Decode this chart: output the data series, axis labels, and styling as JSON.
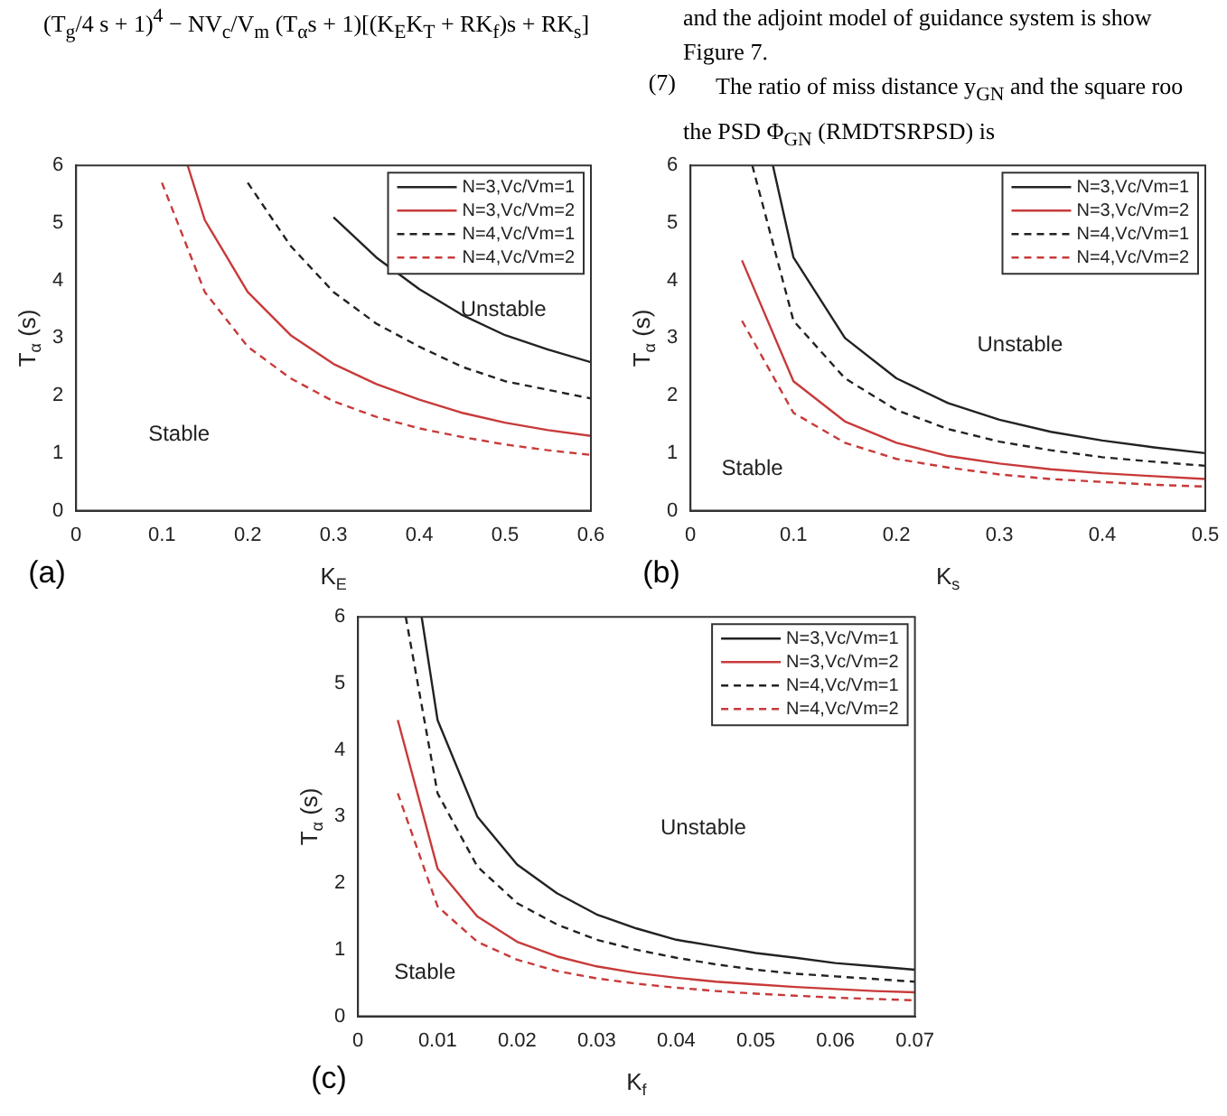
{
  "chart_data": [
    {
      "type": "other",
      "annotations": [
        "(T$_{g}$/4 s + 1)$^{4}$ − NV$_{c}$/V$_{m}$ (T$_{α}$s + 1)[(K$_{E}$K$_{T}$ + RK$_{f}$)s + RK$_{s}$]",
        "(7)",
        "and the adjoint model of guidance system is show",
        "Figure 7.",
        "The ratio of miss distance y$_{GN}$ and the square roo",
        "the PSD Φ$_{GN}$ (RMDTSRPSD) is"
      ]
    },
    {
      "type": "line",
      "xlabel": "K$_{E}$",
      "ylabel": "T$_{α}$ (s)",
      "xlim": [
        0,
        0.6
      ],
      "xticks": [
        0,
        0.1,
        0.2,
        0.3,
        0.4,
        0.5,
        0.6
      ],
      "ylim": [
        0,
        6
      ],
      "yticks": [
        0,
        1,
        2,
        3,
        4,
        5,
        6
      ],
      "legend": "top right",
      "grid": false,
      "annotations": [
        "Unstable",
        "Stable",
        "(a)"
      ],
      "series": [
        {
          "name": "N=3,Vc/Vm=1",
          "color": "#222222",
          "line_style": "solid",
          "x": [
            0.3,
            0.35,
            0.4,
            0.45,
            0.5,
            0.55,
            0.6
          ],
          "values": [
            5.1,
            4.4,
            3.85,
            3.4,
            3.05,
            2.8,
            2.58
          ]
        },
        {
          "name": "N=3,Vc/Vm=2",
          "color": "#c83a3a",
          "line_style": "solid",
          "x": [
            0.13,
            0.15,
            0.2,
            0.25,
            0.3,
            0.35,
            0.4,
            0.45,
            0.5,
            0.55,
            0.6
          ],
          "values": [
            6,
            5.05,
            3.8,
            3.05,
            2.55,
            2.2,
            1.93,
            1.7,
            1.53,
            1.4,
            1.3
          ]
        },
        {
          "name": "N=4,Vc/Vm=1",
          "color": "#222222",
          "line_style": "dashed",
          "x": [
            0.2,
            0.25,
            0.3,
            0.35,
            0.4,
            0.45,
            0.5,
            0.55,
            0.6
          ],
          "values": [
            5.7,
            4.6,
            3.8,
            3.25,
            2.85,
            2.5,
            2.25,
            2.1,
            1.95
          ]
        },
        {
          "name": "N=4,Vc/Vm=2",
          "color": "#c83a3a",
          "line_style": "dashed",
          "x": [
            0.1,
            0.15,
            0.2,
            0.25,
            0.3,
            0.35,
            0.4,
            0.45,
            0.5,
            0.55,
            0.6
          ],
          "values": [
            5.7,
            3.8,
            2.85,
            2.3,
            1.9,
            1.63,
            1.43,
            1.28,
            1.15,
            1.05,
            0.97
          ]
        }
      ]
    },
    {
      "type": "line",
      "xlabel": "K$_{s}$",
      "ylabel": "T$_{α}$ (s)",
      "xlim": [
        0,
        0.5
      ],
      "xticks": [
        0,
        0.1,
        0.2,
        0.3,
        0.4,
        0.5
      ],
      "ylim": [
        0,
        6
      ],
      "yticks": [
        0,
        1,
        2,
        3,
        4,
        5,
        6
      ],
      "legend": "top right",
      "grid": false,
      "annotations": [
        "Unstable",
        "Stable",
        "(b)"
      ],
      "series": [
        {
          "name": "N=3,Vc/Vm=1",
          "color": "#222222",
          "line_style": "solid",
          "x": [
            0.08,
            0.1,
            0.15,
            0.2,
            0.25,
            0.3,
            0.35,
            0.4,
            0.45,
            0.5
          ],
          "values": [
            6,
            4.4,
            3.0,
            2.3,
            1.87,
            1.58,
            1.37,
            1.22,
            1.1,
            1.0
          ]
        },
        {
          "name": "N=3,Vc/Vm=2",
          "color": "#c83a3a",
          "line_style": "solid",
          "x": [
            0.05,
            0.1,
            0.15,
            0.2,
            0.25,
            0.3,
            0.35,
            0.4,
            0.45,
            0.5
          ],
          "values": [
            4.35,
            2.25,
            1.55,
            1.18,
            0.95,
            0.82,
            0.72,
            0.65,
            0.6,
            0.55
          ]
        },
        {
          "name": "N=4,Vc/Vm=1",
          "color": "#222222",
          "line_style": "dashed",
          "x": [
            0.06,
            0.1,
            0.15,
            0.2,
            0.25,
            0.3,
            0.35,
            0.4,
            0.45,
            0.5
          ],
          "values": [
            6,
            3.3,
            2.3,
            1.75,
            1.42,
            1.2,
            1.05,
            0.93,
            0.85,
            0.78
          ]
        },
        {
          "name": "N=4,Vc/Vm=2",
          "color": "#c83a3a",
          "line_style": "dashed",
          "x": [
            0.05,
            0.1,
            0.15,
            0.2,
            0.25,
            0.3,
            0.35,
            0.4,
            0.45,
            0.5
          ],
          "values": [
            3.3,
            1.7,
            1.18,
            0.9,
            0.75,
            0.63,
            0.55,
            0.5,
            0.45,
            0.42
          ]
        }
      ]
    },
    {
      "type": "line",
      "xlabel": "K$_{f}$",
      "ylabel": "T$_{α}$ (s)",
      "xlim": [
        0,
        0.07
      ],
      "xticks": [
        0,
        0.01,
        0.02,
        0.03,
        0.04,
        0.05,
        0.06,
        0.07
      ],
      "ylim": [
        0,
        6
      ],
      "yticks": [
        0,
        1,
        2,
        3,
        4,
        5,
        6
      ],
      "legend": "top right",
      "grid": false,
      "annotations": [
        "Unstable",
        "Stable",
        "(c)"
      ],
      "series": [
        {
          "name": "N=3,Vc/Vm=1",
          "color": "#222222",
          "line_style": "solid",
          "x": [
            0.008,
            0.01,
            0.015,
            0.02,
            0.025,
            0.03,
            0.035,
            0.04,
            0.045,
            0.05,
            0.055,
            0.06,
            0.065,
            0.07
          ],
          "values": [
            6,
            4.45,
            3.0,
            2.28,
            1.85,
            1.53,
            1.32,
            1.15,
            1.05,
            0.95,
            0.88,
            0.8,
            0.75,
            0.7
          ]
        },
        {
          "name": "N=3,Vc/Vm=2",
          "color": "#c83a3a",
          "line_style": "solid",
          "x": [
            0.005,
            0.01,
            0.015,
            0.02,
            0.025,
            0.03,
            0.035,
            0.04,
            0.045,
            0.05,
            0.055,
            0.06,
            0.065,
            0.07
          ],
          "values": [
            4.45,
            2.22,
            1.5,
            1.12,
            0.9,
            0.75,
            0.65,
            0.58,
            0.52,
            0.48,
            0.44,
            0.41,
            0.38,
            0.36
          ]
        },
        {
          "name": "N=4,Vc/Vm=1",
          "color": "#222222",
          "line_style": "dashed",
          "x": [
            0.006,
            0.01,
            0.015,
            0.02,
            0.025,
            0.03,
            0.035,
            0.04,
            0.045,
            0.05,
            0.055,
            0.06,
            0.065,
            0.07
          ],
          "values": [
            6,
            3.35,
            2.25,
            1.7,
            1.38,
            1.15,
            1.0,
            0.88,
            0.78,
            0.7,
            0.64,
            0.6,
            0.56,
            0.52
          ]
        },
        {
          "name": "N=4,Vc/Vm=2",
          "color": "#c83a3a",
          "line_style": "dashed",
          "x": [
            0.005,
            0.01,
            0.015,
            0.02,
            0.025,
            0.03,
            0.035,
            0.04,
            0.045,
            0.05,
            0.055,
            0.06,
            0.065,
            0.07
          ],
          "values": [
            3.35,
            1.65,
            1.12,
            0.85,
            0.68,
            0.57,
            0.49,
            0.43,
            0.38,
            0.34,
            0.31,
            0.28,
            0.26,
            0.24
          ]
        }
      ]
    }
  ]
}
